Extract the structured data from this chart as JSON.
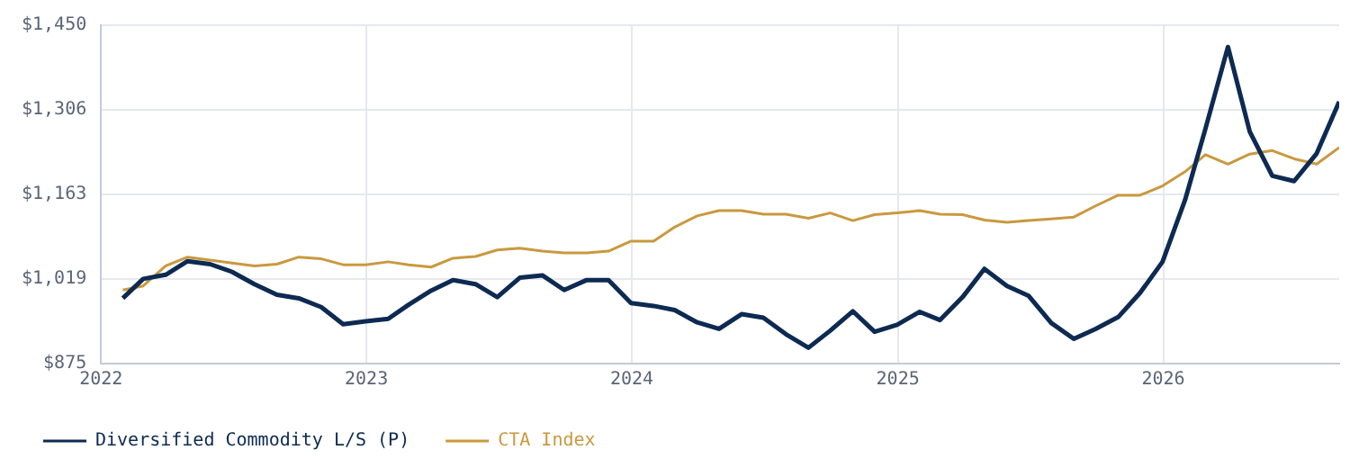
{
  "chart_data": {
    "type": "line",
    "x": [
      "2022-01-31",
      "2022-02-28",
      "2022-03-31",
      "2022-04-30",
      "2022-05-31",
      "2022-06-30",
      "2022-07-31",
      "2022-08-31",
      "2022-09-30",
      "2022-10-31",
      "2022-11-30",
      "2022-12-31",
      "2023-01-31",
      "2023-02-28",
      "2023-03-31",
      "2023-04-30",
      "2023-05-31",
      "2023-06-30",
      "2023-07-31",
      "2023-08-31",
      "2023-09-30",
      "2023-10-31",
      "2023-11-30",
      "2023-12-31",
      "2024-01-31",
      "2024-02-29",
      "2024-03-31",
      "2024-04-30",
      "2024-05-31",
      "2024-06-30",
      "2024-07-31",
      "2024-08-31",
      "2024-09-30",
      "2024-10-31",
      "2024-11-30",
      "2024-12-31",
      "2025-01-31",
      "2025-02-28",
      "2025-03-31",
      "2025-04-30",
      "2025-05-31",
      "2025-06-30",
      "2025-07-31",
      "2025-08-31",
      "2025-09-30",
      "2025-10-31",
      "2025-11-30",
      "2025-12-31",
      "2026-01-31",
      "2026-02-28",
      "2026-03-31",
      "2026-04-30",
      "2026-05-31",
      "2026-06-30",
      "2026-07-31",
      "2026-08-31"
    ],
    "series": [
      {
        "name": "Diversified Commodity L/S (P)",
        "color": "#0d2a52",
        "values": [
          986,
          1019,
          1026,
          1049,
          1044,
          1031,
          1010,
          992,
          986,
          971,
          942,
          947,
          951,
          975,
          999,
          1017,
          1010,
          988,
          1021,
          1025,
          1000,
          1017,
          1017,
          978,
          973,
          966,
          945,
          934,
          959,
          953,
          925,
          902,
          931,
          964,
          929,
          941,
          963,
          949,
          988,
          1036,
          1007,
          990,
          944,
          917,
          934,
          954,
          995,
          1048,
          1153,
          1274,
          1413,
          1269,
          1194,
          1185,
          1232,
          1320
        ]
      },
      {
        "name": "CTA Index",
        "color": "#c9993f",
        "values": [
          1000,
          1007,
          1041,
          1056,
          1051,
          1046,
          1041,
          1044,
          1056,
          1053,
          1043,
          1043,
          1048,
          1043,
          1039,
          1054,
          1057,
          1068,
          1071,
          1066,
          1063,
          1063,
          1066,
          1083,
          1083,
          1107,
          1126,
          1135,
          1135,
          1129,
          1129,
          1122,
          1131,
          1118,
          1128,
          1131,
          1135,
          1129,
          1128,
          1119,
          1115,
          1118,
          1121,
          1124,
          1143,
          1161,
          1161,
          1177,
          1201,
          1230,
          1214,
          1231,
          1237,
          1223,
          1214,
          1242
        ]
      }
    ],
    "xlim": [
      "2022-01-01",
      "2026-08-31"
    ],
    "xticks": [
      {
        "value": "2022-01-01",
        "label": "2022"
      },
      {
        "value": "2023-01-01",
        "label": "2023"
      },
      {
        "value": "2024-01-01",
        "label": "2024"
      },
      {
        "value": "2025-01-01",
        "label": "2025"
      },
      {
        "value": "2026-01-01",
        "label": "2026"
      }
    ],
    "ylim": [
      875,
      1450
    ],
    "yticks": [
      {
        "value": 875,
        "label": "$875"
      },
      {
        "value": 1018.75,
        "label": "$1,019"
      },
      {
        "value": 1162.5,
        "label": "$1,163"
      },
      {
        "value": 1306.25,
        "label": "$1,306"
      },
      {
        "value": 1450,
        "label": "$1,450"
      }
    ],
    "grid": true,
    "legend": "bottom",
    "marker": "none",
    "line_style": "solid"
  }
}
